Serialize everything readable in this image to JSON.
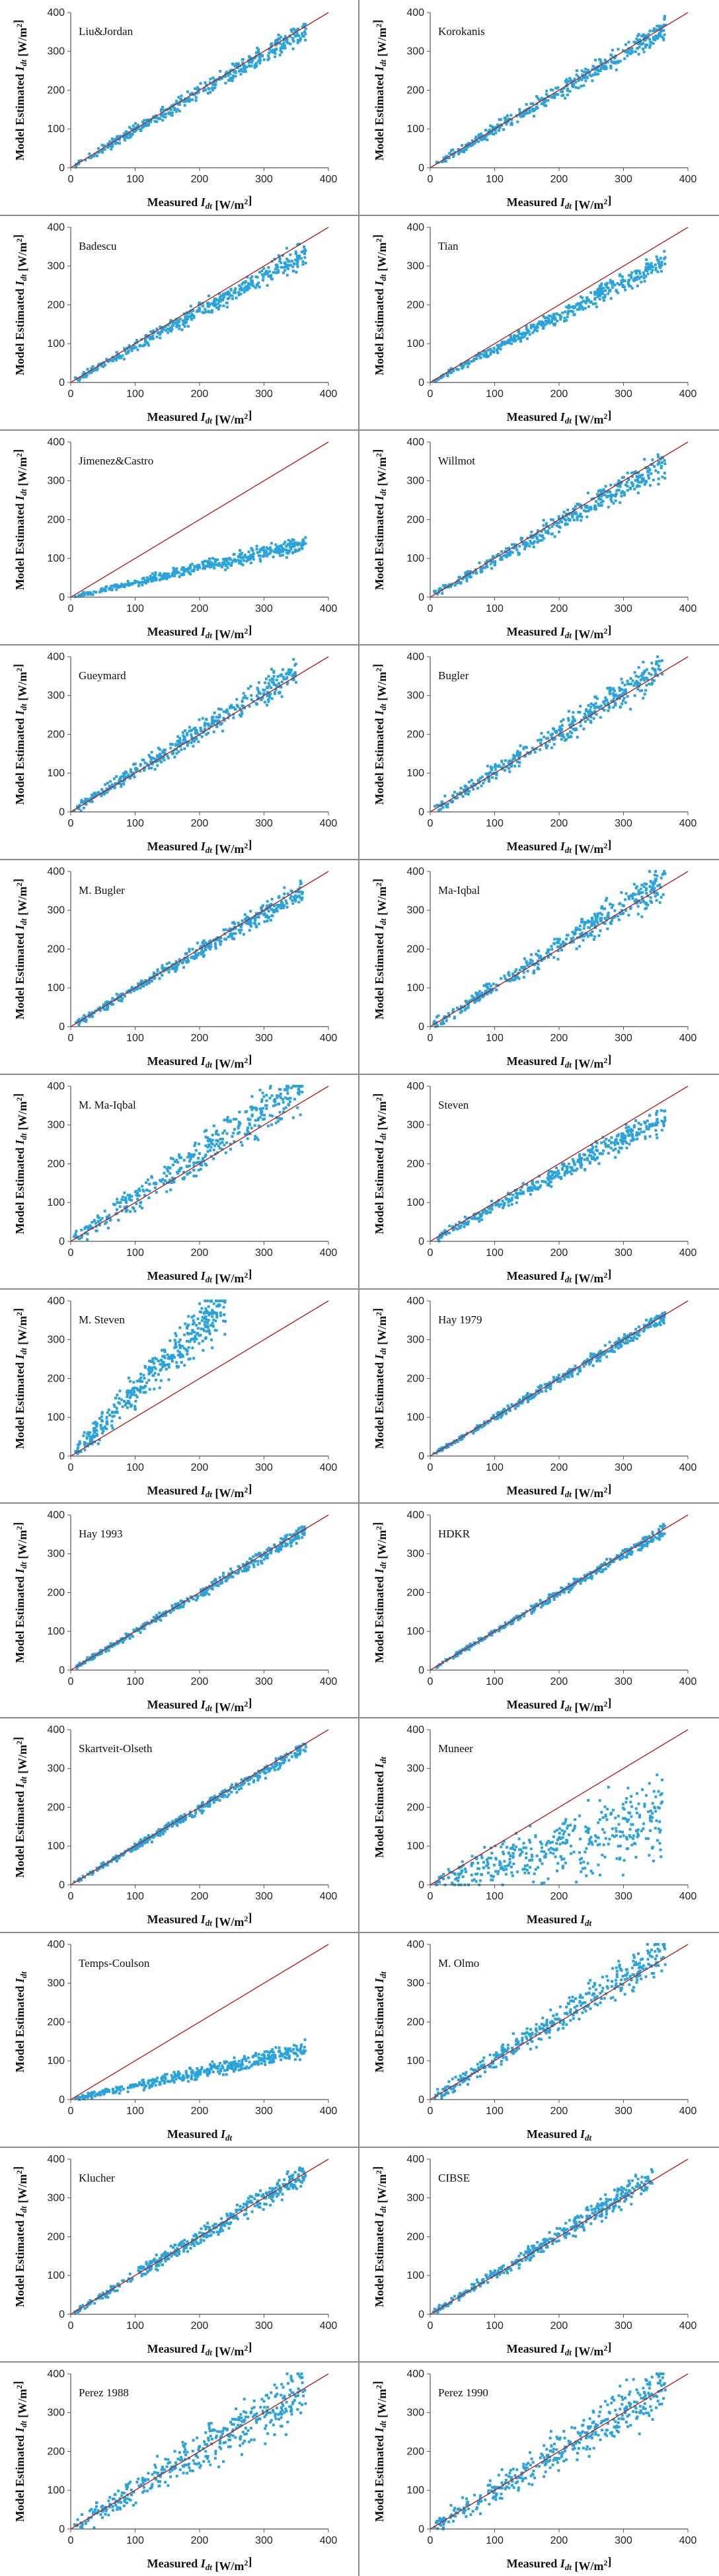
{
  "figure": {
    "layout": "2 columns x 12 rows of scatter panels",
    "marker_color": "#29a3dc",
    "reference_line_color": "#b22222",
    "axis_color": "#555555"
  },
  "chart_data": [
    {
      "type": "scatter",
      "title": "Liu&Jordan",
      "xlabel": "Measured I_dt [W/m²]",
      "ylabel": "Model Estimated I_dt [W/m²]",
      "xlim": [
        0,
        400
      ],
      "ylim": [
        0,
        400
      ],
      "xticks": [
        0,
        100,
        200,
        300,
        400
      ],
      "yticks": [
        0,
        100,
        200,
        300,
        400
      ],
      "fit_slope": 0.97,
      "spread": 12,
      "x_range": [
        5,
        365
      ]
    },
    {
      "type": "scatter",
      "title": "Korokanis",
      "xlabel": "Measured I_dt [W/m²]",
      "ylabel": "Model Estimated I_dt [W/m²]",
      "xlim": [
        0,
        400
      ],
      "ylim": [
        0,
        400
      ],
      "xticks": [
        0,
        100,
        200,
        300,
        400
      ],
      "yticks": [
        0,
        100,
        200,
        300,
        400
      ],
      "fit_slope": 0.98,
      "spread": 12,
      "x_range": [
        5,
        365
      ]
    },
    {
      "type": "scatter",
      "title": "Badescu",
      "xlabel": "Measured I_dt [W/m²]",
      "ylabel": "Model Estimated I_dt [W/m²]",
      "xlim": [
        0,
        400
      ],
      "ylim": [
        0,
        400
      ],
      "xticks": [
        0,
        100,
        200,
        300,
        400
      ],
      "yticks": [
        0,
        100,
        200,
        300,
        400
      ],
      "fit_slope": 0.92,
      "spread": 12,
      "x_range": [
        5,
        365
      ]
    },
    {
      "type": "scatter",
      "title": "Tian",
      "xlabel": "Measured I_dt [W/m²]",
      "ylabel": "Model Estimated I_dt [W/m²]",
      "xlim": [
        0,
        400
      ],
      "ylim": [
        0,
        400
      ],
      "xticks": [
        0,
        100,
        200,
        300,
        400
      ],
      "yticks": [
        0,
        100,
        200,
        300,
        400
      ],
      "fit_slope": 0.86,
      "spread": 10,
      "x_range": [
        5,
        365
      ]
    },
    {
      "type": "scatter",
      "title": "Jimenez&Castro",
      "xlabel": "Measured I_dt [W/m²]",
      "ylabel": "Model Estimated I_dt [W/m²]",
      "xlim": [
        0,
        400
      ],
      "ylim": [
        0,
        400
      ],
      "xticks": [
        0,
        100,
        200,
        300,
        400
      ],
      "yticks": [
        0,
        100,
        200,
        300,
        400
      ],
      "fit_slope": 0.38,
      "spread": 8,
      "x_range": [
        5,
        365
      ]
    },
    {
      "type": "scatter",
      "title": "Willmot",
      "xlabel": "Measured I_dt [W/m²]",
      "ylabel": "Model Estimated I_dt [W/m²]",
      "xlim": [
        0,
        400
      ],
      "ylim": [
        0,
        400
      ],
      "xticks": [
        0,
        100,
        200,
        300,
        400
      ],
      "yticks": [
        0,
        100,
        200,
        300,
        400
      ],
      "fit_slope": 0.95,
      "spread": 14,
      "x_range": [
        5,
        365
      ]
    },
    {
      "type": "scatter",
      "title": "Gueymard",
      "xlabel": "Measured I_dt [W/m²]",
      "ylabel": "Model Estimated I_dt [W/m²]",
      "xlim": [
        0,
        400
      ],
      "ylim": [
        0,
        400
      ],
      "xticks": [
        0,
        100,
        200,
        300,
        400
      ],
      "yticks": [
        0,
        100,
        200,
        300,
        400
      ],
      "fit_slope": 1.04,
      "spread": 16,
      "x_range": [
        5,
        350
      ]
    },
    {
      "type": "scatter",
      "title": "Bugler",
      "xlabel": "Measured I_dt [W/m²]",
      "ylabel": "Model Estimated I_dt [W/m²]",
      "xlim": [
        0,
        400
      ],
      "ylim": [
        0,
        400
      ],
      "xticks": [
        0,
        100,
        200,
        300,
        400
      ],
      "yticks": [
        0,
        100,
        200,
        300,
        400
      ],
      "fit_slope": 1.03,
      "spread": 18,
      "x_range": [
        5,
        365
      ]
    },
    {
      "type": "scatter",
      "title": "M. Bugler",
      "xlabel": "Measured I_dt [W/m²]",
      "ylabel": "Model Estimated I_dt [W/m²]",
      "xlim": [
        0,
        400
      ],
      "ylim": [
        0,
        400
      ],
      "xticks": [
        0,
        100,
        200,
        300,
        400
      ],
      "yticks": [
        0,
        100,
        200,
        300,
        400
      ],
      "fit_slope": 0.98,
      "spread": 11,
      "x_range": [
        5,
        360
      ]
    },
    {
      "type": "scatter",
      "title": "Ma-Iqbal",
      "xlabel": "Measured I_dt [W/m²]",
      "ylabel": "Model Estimated I_dt [W/m²]",
      "xlim": [
        0,
        400
      ],
      "ylim": [
        0,
        400
      ],
      "xticks": [
        0,
        100,
        200,
        300,
        400
      ],
      "yticks": [
        0,
        100,
        200,
        300,
        400
      ],
      "fit_slope": 1.03,
      "spread": 18,
      "x_range": [
        5,
        365
      ]
    },
    {
      "type": "scatter",
      "title": "M. Ma-Iqbal",
      "xlabel": "Measured I_dt [W/m²]",
      "ylabel": "Model Estimated I_dt [W/m²]",
      "xlim": [
        0,
        400
      ],
      "ylim": [
        0,
        400
      ],
      "xticks": [
        0,
        100,
        200,
        300,
        400
      ],
      "yticks": [
        0,
        100,
        200,
        300,
        400
      ],
      "fit_slope": 1.12,
      "spread": 28,
      "x_range": [
        5,
        360
      ]
    },
    {
      "type": "scatter",
      "title": "Steven",
      "xlabel": "Measured I_dt [W/m²]",
      "ylabel": "Model Estimated I_dt [W/m²]",
      "xlim": [
        0,
        400
      ],
      "ylim": [
        0,
        400
      ],
      "xticks": [
        0,
        100,
        200,
        300,
        400
      ],
      "yticks": [
        0,
        100,
        200,
        300,
        400
      ],
      "fit_slope": 0.88,
      "spread": 13,
      "x_range": [
        5,
        365
      ]
    },
    {
      "type": "scatter",
      "title": "M. Steven",
      "xlabel": "Measured I_dt [W/m²]",
      "ylabel": "Model Estimated I_dt [W/m²]",
      "xlim": [
        0,
        400
      ],
      "ylim": [
        0,
        400
      ],
      "xticks": [
        0,
        100,
        200,
        300,
        400
      ],
      "yticks": [
        0,
        100,
        200,
        300,
        400
      ],
      "fit_slope": 1.65,
      "spread": 35,
      "x_range": [
        5,
        240
      ]
    },
    {
      "type": "scatter",
      "title": "Hay 1979",
      "xlabel": "Measured I_dt [W/m²]",
      "ylabel": "Model Estimated I_dt [W/m²]",
      "xlim": [
        0,
        400
      ],
      "ylim": [
        0,
        400
      ],
      "xticks": [
        0,
        100,
        200,
        300,
        400
      ],
      "yticks": [
        0,
        100,
        200,
        300,
        400
      ],
      "fit_slope": 0.99,
      "spread": 7,
      "x_range": [
        5,
        365
      ]
    },
    {
      "type": "scatter",
      "title": "Hay 1993",
      "xlabel": "Measured I_dt [W/m²]",
      "ylabel": "Model Estimated I_dt [W/m²]",
      "xlim": [
        0,
        400
      ],
      "ylim": [
        0,
        400
      ],
      "xticks": [
        0,
        100,
        200,
        300,
        400
      ],
      "yticks": [
        0,
        100,
        200,
        300,
        400
      ],
      "fit_slope": 0.99,
      "spread": 7,
      "x_range": [
        5,
        365
      ]
    },
    {
      "type": "scatter",
      "title": "HDKR",
      "xlabel": "Measured I_dt [W/m²]",
      "ylabel": "Model Estimated I_dt [W/m²]",
      "xlim": [
        0,
        400
      ],
      "ylim": [
        0,
        400
      ],
      "xticks": [
        0,
        100,
        200,
        300,
        400
      ],
      "yticks": [
        0,
        100,
        200,
        300,
        400
      ],
      "fit_slope": 0.99,
      "spread": 6,
      "x_range": [
        5,
        365
      ]
    },
    {
      "type": "scatter",
      "title": "Skartveit-Olseth",
      "xlabel": "Measured I_dt [W/m²]",
      "ylabel": "Model Estimated I_dt [W/m²]",
      "xlim": [
        0,
        400
      ],
      "ylim": [
        0,
        400
      ],
      "xticks": [
        0,
        100,
        200,
        300,
        400
      ],
      "yticks": [
        0,
        100,
        200,
        300,
        400
      ],
      "fit_slope": 0.98,
      "spread": 7,
      "x_range": [
        5,
        365
      ]
    },
    {
      "type": "scatter",
      "title": "Muneer",
      "xlabel": "Measured I_dt",
      "ylabel": "Model Estimated I_dt",
      "xlim": [
        0,
        400
      ],
      "ylim": [
        0,
        400
      ],
      "xticks": [
        0,
        100,
        200,
        300,
        400
      ],
      "yticks": [
        0,
        100,
        200,
        300,
        400
      ],
      "fit_slope": 0.5,
      "spread": 45,
      "x_range": [
        5,
        360
      ]
    },
    {
      "type": "scatter",
      "title": "Temps-Coulson",
      "xlabel": "Measured I_dt",
      "ylabel": "Model Estimated I_dt",
      "xlim": [
        0,
        400
      ],
      "ylim": [
        0,
        400
      ],
      "xticks": [
        0,
        100,
        200,
        300,
        400
      ],
      "yticks": [
        0,
        100,
        200,
        300,
        400
      ],
      "fit_slope": 0.35,
      "spread": 10,
      "x_range": [
        5,
        365
      ]
    },
    {
      "type": "scatter",
      "title": "M. Olmo",
      "xlabel": "Measured I_dt",
      "ylabel": "Model Estimated I_dt",
      "xlim": [
        0,
        400
      ],
      "ylim": [
        0,
        400
      ],
      "xticks": [
        0,
        100,
        200,
        300,
        400
      ],
      "yticks": [
        0,
        100,
        200,
        300,
        400
      ],
      "fit_slope": 1.05,
      "spread": 20,
      "x_range": [
        5,
        365
      ]
    },
    {
      "type": "scatter",
      "title": "Klucher",
      "xlabel": "Measured I_dt [W/m²]",
      "ylabel": "Model Estimated I_dt [W/m²]",
      "xlim": [
        0,
        400
      ],
      "ylim": [
        0,
        400
      ],
      "xticks": [
        0,
        100,
        200,
        300,
        400
      ],
      "yticks": [
        0,
        100,
        200,
        300,
        400
      ],
      "fit_slope": 1.0,
      "spread": 12,
      "x_range": [
        5,
        365
      ]
    },
    {
      "type": "scatter",
      "title": "CIBSE",
      "xlabel": "Measured I_dt [W/m²]",
      "ylabel": "Model Estimated I_dt [W/m²]",
      "xlim": [
        0,
        400
      ],
      "ylim": [
        0,
        400
      ],
      "xticks": [
        0,
        100,
        200,
        300,
        400
      ],
      "yticks": [
        0,
        100,
        200,
        300,
        400
      ],
      "fit_slope": 1.02,
      "spread": 13,
      "x_range": [
        5,
        345
      ]
    },
    {
      "type": "scatter",
      "title": "Perez 1988",
      "xlabel": "Measured I_dt [W/m²]",
      "ylabel": "Model Estimated I_dt [W/m²]",
      "xlim": [
        0,
        400
      ],
      "ylim": [
        0,
        400
      ],
      "xticks": [
        0,
        100,
        200,
        300,
        400
      ],
      "yticks": [
        0,
        100,
        200,
        300,
        400
      ],
      "fit_slope": 1.0,
      "spread": 30,
      "x_range": [
        5,
        365
      ]
    },
    {
      "type": "scatter",
      "title": "Perez 1990",
      "xlabel": "Measured I_dt [W/m²]",
      "ylabel": "Model Estimated I_dt [W/m²]",
      "xlim": [
        0,
        400
      ],
      "ylim": [
        0,
        400
      ],
      "xticks": [
        0,
        100,
        200,
        300,
        400
      ],
      "yticks": [
        0,
        100,
        200,
        300,
        400
      ],
      "fit_slope": 1.0,
      "spread": 28,
      "x_range": [
        5,
        365
      ]
    }
  ]
}
